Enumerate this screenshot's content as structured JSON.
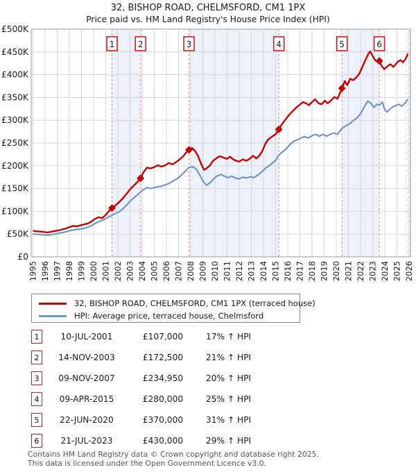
{
  "header": {
    "title": "32, BISHOP ROAD, CHELMSFORD, CM1 1PX",
    "subtitle": "Price paid vs. HM Land Registry's House Price Index (HPI)"
  },
  "chart_data": {
    "type": "line",
    "title": "32, BISHOP ROAD, CHELMSFORD, CM1 1PX",
    "subtitle": "Price paid vs. HM Land Registry's House Price Index (HPI)",
    "xlim": [
      1995,
      2026.15
    ],
    "ylim": [
      0,
      500000
    ],
    "grid": true,
    "x_ticks": [
      1995,
      1996,
      1997,
      1998,
      1999,
      2000,
      2001,
      2002,
      2003,
      2004,
      2005,
      2006,
      2007,
      2008,
      2009,
      2010,
      2011,
      2012,
      2013,
      2014,
      2015,
      2016,
      2017,
      2018,
      2019,
      2020,
      2021,
      2022,
      2023,
      2024,
      2025,
      2026
    ],
    "y_ticks": [
      {
        "label": "£0",
        "value": 0
      },
      {
        "label": "£50K",
        "value": 50000
      },
      {
        "label": "£100K",
        "value": 100000
      },
      {
        "label": "£150K",
        "value": 150000
      },
      {
        "label": "£200K",
        "value": 200000
      },
      {
        "label": "£250K",
        "value": 250000
      },
      {
        "label": "£300K",
        "value": 300000
      },
      {
        "label": "£350K",
        "value": 350000
      },
      {
        "label": "£400K",
        "value": 400000
      },
      {
        "label": "£450K",
        "value": 450000
      },
      {
        "label": "£500K",
        "value": 500000
      }
    ],
    "colors": {
      "price_line": "#c40000",
      "hpi_line": "#6e96c8",
      "band_fill": "#edf1fa",
      "grid": "#d5d5d5",
      "border": "#9a9a9a",
      "dashed_marker": "#f27f7f",
      "marker_box_border": "#c42020",
      "hatch": "#c4c4c4"
    },
    "ownership_bands": [
      [
        2001.52,
        2003.87
      ],
      [
        2007.86,
        2015.27
      ],
      [
        2020.47,
        2023.55
      ]
    ],
    "future_hatch": [
      2025.65,
      2026.15
    ],
    "series": [
      {
        "name": "32, BISHOP ROAD, CHELMSFORD, CM1 1PX (terraced house)",
        "color": "#c40000",
        "points": [
          [
            1995.0,
            57000
          ],
          [
            1995.3,
            56000
          ],
          [
            1995.6,
            55500
          ],
          [
            1995.9,
            54500
          ],
          [
            1996.2,
            53500
          ],
          [
            1996.5,
            55000
          ],
          [
            1996.8,
            56500
          ],
          [
            1997.1,
            58000
          ],
          [
            1997.4,
            60000
          ],
          [
            1997.7,
            62000
          ],
          [
            1998.0,
            65000
          ],
          [
            1998.3,
            68000
          ],
          [
            1998.6,
            67000
          ],
          [
            1998.9,
            69000
          ],
          [
            1999.2,
            71000
          ],
          [
            1999.5,
            73000
          ],
          [
            1999.8,
            77000
          ],
          [
            2000.1,
            83000
          ],
          [
            2000.4,
            87000
          ],
          [
            2000.7,
            85000
          ],
          [
            2001.0,
            92000
          ],
          [
            2001.25,
            100000
          ],
          [
            2001.52,
            107000
          ],
          [
            2001.8,
            113000
          ],
          [
            2002.1,
            120000
          ],
          [
            2002.4,
            128000
          ],
          [
            2002.7,
            138000
          ],
          [
            2003.0,
            148000
          ],
          [
            2003.3,
            156000
          ],
          [
            2003.6,
            164000
          ],
          [
            2003.87,
            172500
          ],
          [
            2004.1,
            185000
          ],
          [
            2004.4,
            196000
          ],
          [
            2004.7,
            194000
          ],
          [
            2005.0,
            197000
          ],
          [
            2005.3,
            201000
          ],
          [
            2005.6,
            198000
          ],
          [
            2005.9,
            201000
          ],
          [
            2006.2,
            206000
          ],
          [
            2006.5,
            203000
          ],
          [
            2006.8,
            208000
          ],
          [
            2007.1,
            214000
          ],
          [
            2007.4,
            221000
          ],
          [
            2007.6,
            228000
          ],
          [
            2007.86,
            235000
          ],
          [
            2008.1,
            239000
          ],
          [
            2008.35,
            233000
          ],
          [
            2008.6,
            222000
          ],
          [
            2008.85,
            205000
          ],
          [
            2009.1,
            191000
          ],
          [
            2009.35,
            195000
          ],
          [
            2009.6,
            201000
          ],
          [
            2009.85,
            211000
          ],
          [
            2010.1,
            216000
          ],
          [
            2010.4,
            221000
          ],
          [
            2010.7,
            218000
          ],
          [
            2011.0,
            215000
          ],
          [
            2011.25,
            220000
          ],
          [
            2011.5,
            214000
          ],
          [
            2011.75,
            211000
          ],
          [
            2012.0,
            209000
          ],
          [
            2012.3,
            214000
          ],
          [
            2012.6,
            211000
          ],
          [
            2012.9,
            216000
          ],
          [
            2013.15,
            222000
          ],
          [
            2013.4,
            216000
          ],
          [
            2013.65,
            222000
          ],
          [
            2013.9,
            232000
          ],
          [
            2014.15,
            248000
          ],
          [
            2014.4,
            258000
          ],
          [
            2014.7,
            264000
          ],
          [
            2015.0,
            269000
          ],
          [
            2015.27,
            280000
          ],
          [
            2015.55,
            292000
          ],
          [
            2015.85,
            303000
          ],
          [
            2016.15,
            313000
          ],
          [
            2016.45,
            321000
          ],
          [
            2016.75,
            329000
          ],
          [
            2017.0,
            334000
          ],
          [
            2017.25,
            340000
          ],
          [
            2017.5,
            337000
          ],
          [
            2017.75,
            333000
          ],
          [
            2018.0,
            340000
          ],
          [
            2018.25,
            346000
          ],
          [
            2018.55,
            337000
          ],
          [
            2018.8,
            335000
          ],
          [
            2019.05,
            343000
          ],
          [
            2019.3,
            337000
          ],
          [
            2019.6,
            344000
          ],
          [
            2019.85,
            351000
          ],
          [
            2020.1,
            347000
          ],
          [
            2020.47,
            370000
          ],
          [
            2020.7,
            386000
          ],
          [
            2020.9,
            377000
          ],
          [
            2021.15,
            391000
          ],
          [
            2021.4,
            388000
          ],
          [
            2021.65,
            394000
          ],
          [
            2021.9,
            402000
          ],
          [
            2022.15,
            417000
          ],
          [
            2022.4,
            432000
          ],
          [
            2022.65,
            446000
          ],
          [
            2022.8,
            451000
          ],
          [
            2023.0,
            441000
          ],
          [
            2023.2,
            432000
          ],
          [
            2023.4,
            428000
          ],
          [
            2023.55,
            430000
          ],
          [
            2023.75,
            419000
          ],
          [
            2023.95,
            412000
          ],
          [
            2024.2,
            418000
          ],
          [
            2024.45,
            423000
          ],
          [
            2024.7,
            417000
          ],
          [
            2024.9,
            423000
          ],
          [
            2025.1,
            429000
          ],
          [
            2025.3,
            432000
          ],
          [
            2025.5,
            427000
          ],
          [
            2025.7,
            434000
          ],
          [
            2025.9,
            446000
          ]
        ]
      },
      {
        "name": "HPI: Average price, terraced house, Chelmsford",
        "color": "#6e96c8",
        "points": [
          [
            1995.0,
            50000
          ],
          [
            1995.3,
            49500
          ],
          [
            1995.6,
            49000
          ],
          [
            1995.9,
            48000
          ],
          [
            1996.2,
            47500
          ],
          [
            1996.5,
            48500
          ],
          [
            1996.8,
            50000
          ],
          [
            1997.1,
            51500
          ],
          [
            1997.4,
            53000
          ],
          [
            1997.7,
            55000
          ],
          [
            1998.0,
            57000
          ],
          [
            1998.3,
            59000
          ],
          [
            1998.6,
            60000
          ],
          [
            1998.9,
            61000
          ],
          [
            1999.2,
            62500
          ],
          [
            1999.5,
            65000
          ],
          [
            1999.8,
            68000
          ],
          [
            2000.1,
            73000
          ],
          [
            2000.4,
            77000
          ],
          [
            2000.7,
            80000
          ],
          [
            2001.0,
            84000
          ],
          [
            2001.25,
            88000
          ],
          [
            2001.52,
            91500
          ],
          [
            2001.8,
            95000
          ],
          [
            2002.1,
            99000
          ],
          [
            2002.4,
            105000
          ],
          [
            2002.7,
            113000
          ],
          [
            2003.0,
            122000
          ],
          [
            2003.3,
            129000
          ],
          [
            2003.6,
            136000
          ],
          [
            2003.87,
            142500
          ],
          [
            2004.1,
            147000
          ],
          [
            2004.4,
            152000
          ],
          [
            2004.7,
            150000
          ],
          [
            2005.0,
            152000
          ],
          [
            2005.3,
            154000
          ],
          [
            2005.6,
            155000
          ],
          [
            2005.9,
            158000
          ],
          [
            2006.2,
            161000
          ],
          [
            2006.5,
            166000
          ],
          [
            2006.8,
            170000
          ],
          [
            2007.1,
            176000
          ],
          [
            2007.4,
            184000
          ],
          [
            2007.86,
            196000
          ],
          [
            2008.15,
            198000
          ],
          [
            2008.45,
            193000
          ],
          [
            2008.7,
            182000
          ],
          [
            2009.0,
            167000
          ],
          [
            2009.3,
            157000
          ],
          [
            2009.6,
            163000
          ],
          [
            2009.9,
            172000
          ],
          [
            2010.2,
            178000
          ],
          [
            2010.5,
            181000
          ],
          [
            2010.8,
            177000
          ],
          [
            2011.1,
            174000
          ],
          [
            2011.4,
            177000
          ],
          [
            2011.7,
            173000
          ],
          [
            2012.0,
            171000
          ],
          [
            2012.3,
            175000
          ],
          [
            2012.6,
            173000
          ],
          [
            2012.9,
            176000
          ],
          [
            2013.2,
            174000
          ],
          [
            2013.5,
            179000
          ],
          [
            2013.8,
            185000
          ],
          [
            2014.1,
            193000
          ],
          [
            2014.4,
            199000
          ],
          [
            2014.7,
            205000
          ],
          [
            2015.0,
            212000
          ],
          [
            2015.27,
            224000
          ],
          [
            2015.6,
            231000
          ],
          [
            2015.9,
            238000
          ],
          [
            2016.2,
            247000
          ],
          [
            2016.5,
            254000
          ],
          [
            2016.8,
            257000
          ],
          [
            2017.1,
            261000
          ],
          [
            2017.4,
            264000
          ],
          [
            2017.7,
            261000
          ],
          [
            2018.0,
            266000
          ],
          [
            2018.3,
            269000
          ],
          [
            2018.6,
            265000
          ],
          [
            2018.9,
            269000
          ],
          [
            2019.2,
            265000
          ],
          [
            2019.5,
            269000
          ],
          [
            2019.8,
            272000
          ],
          [
            2020.1,
            269000
          ],
          [
            2020.47,
            282000
          ],
          [
            2020.8,
            288000
          ],
          [
            2021.1,
            292000
          ],
          [
            2021.4,
            299000
          ],
          [
            2021.7,
            305000
          ],
          [
            2022.0,
            314000
          ],
          [
            2022.3,
            329000
          ],
          [
            2022.6,
            342000
          ],
          [
            2022.85,
            337000
          ],
          [
            2023.1,
            328000
          ],
          [
            2023.35,
            335000
          ],
          [
            2023.55,
            333000
          ],
          [
            2023.8,
            340000
          ],
          [
            2024.0,
            323000
          ],
          [
            2024.2,
            318000
          ],
          [
            2024.45,
            325000
          ],
          [
            2024.7,
            330000
          ],
          [
            2024.9,
            332000
          ],
          [
            2025.15,
            335000
          ],
          [
            2025.4,
            331000
          ],
          [
            2025.65,
            337000
          ],
          [
            2025.9,
            346000
          ]
        ]
      }
    ]
  },
  "transactions": [
    {
      "num": "1",
      "date": "10-JUL-2001",
      "price": "£107,000",
      "hpi_diff": "17% ↑ HPI",
      "year": 2001.52,
      "value": 107000
    },
    {
      "num": "2",
      "date": "14-NOV-2003",
      "price": "£172,500",
      "hpi_diff": "21% ↑ HPI",
      "year": 2003.87,
      "value": 172500
    },
    {
      "num": "3",
      "date": "09-NOV-2007",
      "price": "£234,950",
      "hpi_diff": "20% ↑ HPI",
      "year": 2007.86,
      "value": 234950
    },
    {
      "num": "4",
      "date": "09-APR-2015",
      "price": "£280,000",
      "hpi_diff": "25% ↑ HPI",
      "year": 2015.27,
      "value": 280000
    },
    {
      "num": "5",
      "date": "22-JUN-2020",
      "price": "£370,000",
      "hpi_diff": "31% ↑ HPI",
      "year": 2020.47,
      "value": 370000
    },
    {
      "num": "6",
      "date": "21-JUL-2023",
      "price": "£430,000",
      "hpi_diff": "29% ↑ HPI",
      "year": 2023.55,
      "value": 430000
    }
  ],
  "footer": {
    "line1": "Contains HM Land Registry data © Crown copyright and database right 2025.",
    "line2": "This data is licensed under the Open Government Licence v3.0."
  }
}
